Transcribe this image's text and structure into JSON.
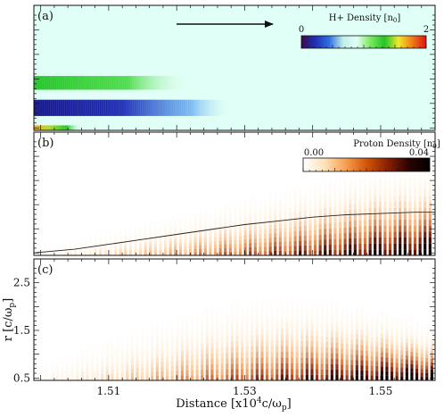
{
  "chart_data": [
    {
      "type": "heatmap",
      "panel_label": "(a)",
      "colorbar": {
        "label": "H+ Density [n",
        "label_sub": "0",
        "label_close": "]",
        "min_label": "0",
        "max_label": "2",
        "range": [
          0,
          2
        ],
        "colormap": [
          "#3a0a4d",
          "#1f2fb5",
          "#2f6fe0",
          "#bfeee8",
          "#e0fff6",
          "#7ae85a",
          "#22c42a",
          "#f0e82a",
          "#f07a18",
          "#e01010"
        ]
      },
      "arrow_direction": "right",
      "background_value": 1.0,
      "bands": [
        {
          "r_center": 0.38,
          "value": 1.65,
          "x_extent": [
            1.499,
            1.522
          ]
        },
        {
          "r_center": 0.18,
          "value": 0.15,
          "x_extent": [
            1.499,
            1.528
          ]
        },
        {
          "r_center": 0.02,
          "value": 1.9,
          "x_extent": [
            1.499,
            1.506
          ]
        }
      ]
    },
    {
      "type": "heatmap",
      "panel_label": "(b)",
      "colorbar": {
        "label": "Proton Density [n",
        "label_sub": "0",
        "label_close": "]",
        "min_label": "0.00",
        "max_label": "0.04",
        "range": [
          0.0,
          0.04
        ],
        "colormap": [
          "#ffffff",
          "#ffe2bc",
          "#f7a050",
          "#d2560a",
          "#8a1f02",
          "#2a0400",
          "#000000"
        ]
      },
      "overlay_line": {
        "x": [
          1.499,
          1.505,
          1.51,
          1.515,
          1.52,
          1.525,
          1.53,
          1.535,
          1.54,
          1.545,
          1.55,
          1.555,
          1.558
        ],
        "r": [
          0.02,
          0.05,
          0.09,
          0.13,
          0.17,
          0.21,
          0.25,
          0.28,
          0.31,
          0.33,
          0.34,
          0.35,
          0.35
        ]
      }
    },
    {
      "type": "heatmap",
      "panel_label": "(c)",
      "xlabel": "Distance [x10",
      "xlabel_sup": "4",
      "xlabel_mid": "c/ω",
      "xlabel_sub": "p",
      "xlabel_close": "]",
      "ylabel": "r [c/ω",
      "ylabel_sub": "p",
      "ylabel_close": "]",
      "xlim": [
        1.499,
        1.558
      ],
      "ylim": [
        0.45,
        3.0
      ],
      "xticks": [
        1.51,
        1.53,
        1.55
      ],
      "xtick_labels": [
        "1.51",
        "1.53",
        "1.55"
      ],
      "yticks": [
        0.5,
        1.5,
        2.5
      ],
      "ytick_labels": [
        "0.5",
        "1.5",
        "2.5"
      ]
    }
  ]
}
